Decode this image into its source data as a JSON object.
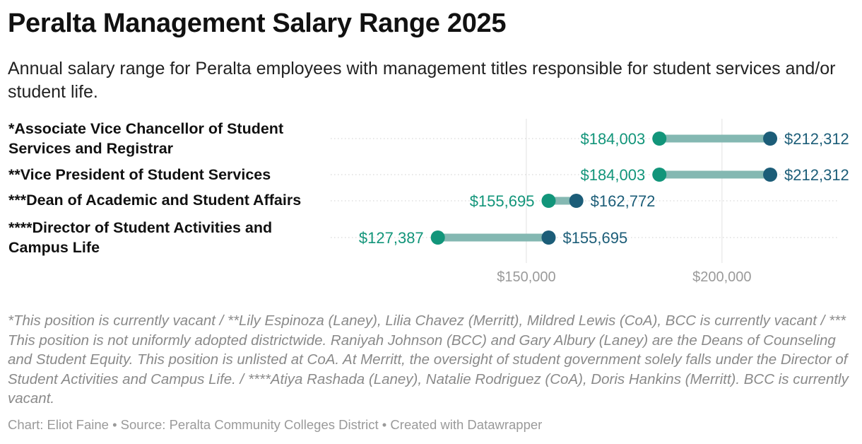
{
  "title": "Peralta Management Salary Range 2025",
  "subtitle": "Annual salary range for Peralta employees with management titles responsible for student services and/or student life.",
  "chart_data": {
    "type": "range-dot",
    "rows": [
      {
        "label": "*Associate Vice Chancellor of Student Services and Registrar",
        "low": 184003,
        "high": 212312,
        "low_label": "$184,003",
        "high_label": "$212,312"
      },
      {
        "label": "**Vice President of Student Services",
        "low": 184003,
        "high": 212312,
        "low_label": "$184,003",
        "high_label": "$212,312"
      },
      {
        "label": "***Dean of Academic and Student Affairs",
        "low": 155695,
        "high": 162772,
        "low_label": "$155,695",
        "high_label": "$162,772"
      },
      {
        "label": "****Director of Student Activities and Campus Life",
        "low": 127387,
        "high": 155695,
        "low_label": "$127,387",
        "high_label": "$155,695"
      }
    ],
    "x_ticks": [
      150000,
      200000
    ],
    "x_tick_labels": [
      "$150,000",
      "$200,000"
    ],
    "xlim": [
      100000,
      230000
    ],
    "grid": true,
    "colors": {
      "low": "#12957a",
      "high": "#1c5d78",
      "bar": "#84b8b2",
      "grid": "#e2e2e2",
      "row_line": "#cfcfcf",
      "axis_text": "#9a9a9a"
    }
  },
  "notes": "*This position is currently vacant / **Lily Espinoza (Laney), Lilia Chavez (Merritt), Mildred Lewis (CoA), BCC is currently vacant / *** This position is not uniformly adopted districtwide. Raniyah Johnson (BCC) and Gary Albury (Laney) are the Deans of Counseling and Student Equity. This position is unlisted at CoA. At Merritt, the oversight of student government solely falls under the Director of Student Activities and Campus Life. / ****Atiya Rashada (Laney), Natalie Rodriguez (CoA), Doris Hankins (Merritt). BCC is currently vacant.",
  "credits": "Chart: Eliot Faine • Source: Peralta Community Colleges District • Created with Datawrapper"
}
